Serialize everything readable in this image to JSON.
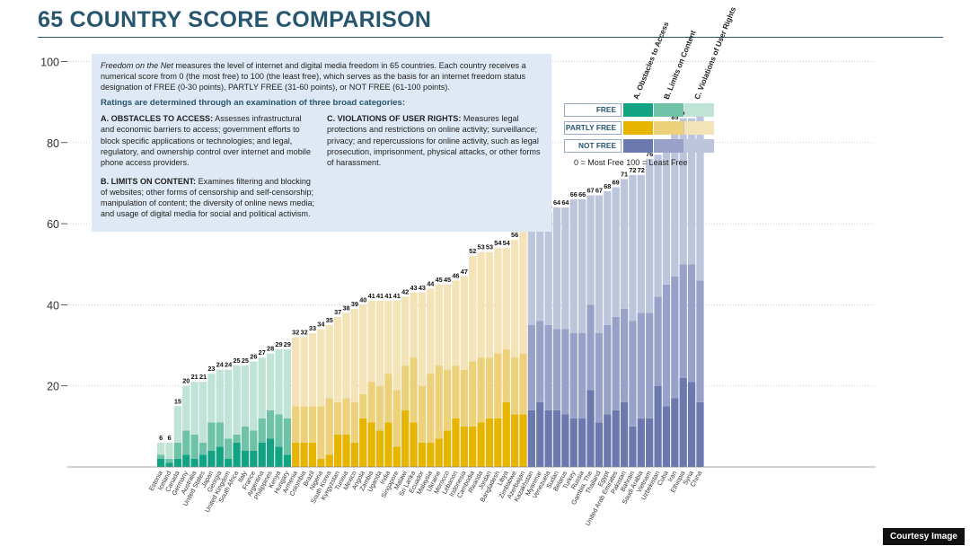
{
  "title": "65 COUNTRY SCORE COMPARISON",
  "info": {
    "intro_lead": "Freedom on the Net",
    "intro_rest": " measures the level of internet and digital media freedom in 65 countries. Each country receives a numerical score from 0 (the most free) to 100 (the least free), which serves as the basis for an internet freedom status designation of FREE (0-30 points), PARTLY FREE (31-60 points), or NOT FREE (61-100 points).",
    "heading": "Ratings are determined through an examination of three broad categories:",
    "a_title": "A. OBSTACLES TO ACCESS:",
    "a_text": " Assesses infrastructural and economic barriers to access; government efforts to block specific applications or technologies; and legal, regulatory, and ownership control over internet and mobile phone access providers.",
    "b_title": "B. LIMITS ON CONTENT:",
    "b_text": " Examines filtering and blocking of websites; other forms of censorship and self-censorship; manipulation of content; the diversity of online news media; and usage of digital media for social and political activism.",
    "c_title": "C. VIOLATIONS OF USER RIGHTS:",
    "c_text": " Measures legal protections and restrictions on online activity; surveillance; privacy; and repercussions for online activity, such as legal prosecution, imprisonment, physical attacks, or other forms of harassment."
  },
  "legend": {
    "headers": [
      "A. Obstacles to Access",
      "B. Limits on Content",
      "C. Violations of User Rights"
    ],
    "rows": [
      {
        "label": "FREE",
        "colors": [
          "#12a383",
          "#6dc2a7",
          "#bfe4d6"
        ]
      },
      {
        "label": "PARTLY FREE",
        "colors": [
          "#e7b500",
          "#ecd17a",
          "#f3e3b6"
        ]
      },
      {
        "label": "NOT FREE",
        "colors": [
          "#6c79ae",
          "#98a2c9",
          "#bcc5dc"
        ]
      }
    ],
    "note": "0 = Most Free   100 = Least Free"
  },
  "credit": "Courtesy Image",
  "chart_data": {
    "type": "bar",
    "stacked": true,
    "ylim": [
      0,
      100
    ],
    "yticks": [
      20,
      40,
      60,
      80,
      100
    ],
    "grid": true,
    "categories": [
      "Estonia",
      "Iceland",
      "Canada",
      "Germany",
      "Australia",
      "United States",
      "Japan",
      "Georgia",
      "United Kingdom",
      "South Africa",
      "Italy",
      "France",
      "Argentina",
      "Philippines",
      "Kenya",
      "Hungary",
      "Armenia",
      "Colombia",
      "Brazil",
      "Nigeria",
      "South Korea",
      "Kyrgyzstan",
      "Tunisia",
      "Mexico",
      "Angola",
      "Zambia",
      "Uganda",
      "India",
      "Singapore",
      "Malawi",
      "Sri Lanka",
      "Ecuador",
      "Malaysia",
      "Ukraine",
      "Morocco",
      "Lebanon",
      "Indonesia",
      "Cambodia",
      "Rwanda",
      "Jordan",
      "Bangladesh",
      "Libya",
      "Zimbabwe",
      "Azerbaijan",
      "Kazakhstan",
      "Myanmar",
      "Venezuela",
      "Sudan",
      "Belarus",
      "Turkey",
      "Russia",
      "Gambia, The",
      "Thailand",
      "Egypt",
      "United Arab Emirates",
      "Pakistan",
      "Bahrain",
      "Saudi Arabia",
      "Vietnam",
      "Uzbekistan",
      "Cuba",
      "Iran",
      "Ethiopia",
      "Syria",
      "China"
    ],
    "totals": [
      6,
      6,
      15,
      20,
      21,
      21,
      23,
      24,
      24,
      25,
      25,
      26,
      27,
      28,
      29,
      29,
      32,
      32,
      33,
      34,
      35,
      37,
      38,
      39,
      40,
      41,
      41,
      41,
      41,
      42,
      43,
      43,
      44,
      45,
      45,
      46,
      47,
      52,
      53,
      53,
      54,
      54,
      56,
      58,
      62,
      63,
      63,
      64,
      64,
      66,
      66,
      67,
      67,
      68,
      69,
      71,
      72,
      72,
      76,
      77,
      79,
      85,
      86,
      86,
      87
    ],
    "status": [
      "FREE",
      "FREE",
      "FREE",
      "FREE",
      "FREE",
      "FREE",
      "FREE",
      "FREE",
      "FREE",
      "FREE",
      "FREE",
      "FREE",
      "FREE",
      "FREE",
      "FREE",
      "FREE",
      "PARTLY FREE",
      "PARTLY FREE",
      "PARTLY FREE",
      "PARTLY FREE",
      "PARTLY FREE",
      "PARTLY FREE",
      "PARTLY FREE",
      "PARTLY FREE",
      "PARTLY FREE",
      "PARTLY FREE",
      "PARTLY FREE",
      "PARTLY FREE",
      "PARTLY FREE",
      "PARTLY FREE",
      "PARTLY FREE",
      "PARTLY FREE",
      "PARTLY FREE",
      "PARTLY FREE",
      "PARTLY FREE",
      "PARTLY FREE",
      "PARTLY FREE",
      "PARTLY FREE",
      "PARTLY FREE",
      "PARTLY FREE",
      "PARTLY FREE",
      "PARTLY FREE",
      "PARTLY FREE",
      "PARTLY FREE",
      "NOT FREE",
      "NOT FREE",
      "NOT FREE",
      "NOT FREE",
      "NOT FREE",
      "NOT FREE",
      "NOT FREE",
      "NOT FREE",
      "NOT FREE",
      "NOT FREE",
      "NOT FREE",
      "NOT FREE",
      "NOT FREE",
      "NOT FREE",
      "NOT FREE",
      "NOT FREE",
      "NOT FREE",
      "NOT FREE",
      "NOT FREE",
      "NOT FREE",
      "NOT FREE"
    ],
    "series": [
      {
        "name": "A. Obstacles to Access",
        "values": [
          2,
          1,
          2,
          3,
          2,
          3,
          4,
          5,
          2,
          6,
          4,
          4,
          6,
          7,
          5,
          3,
          6,
          6,
          6,
          2,
          3,
          8,
          8,
          6,
          12,
          11,
          9,
          11,
          5,
          14,
          11,
          6,
          6,
          7,
          9,
          12,
          10,
          10,
          11,
          12,
          12,
          16,
          13,
          13,
          14,
          16,
          14,
          14,
          13,
          12,
          12,
          19,
          11,
          13,
          14,
          16,
          10,
          12,
          12,
          20,
          15,
          17,
          22,
          21,
          16
        ]
      },
      {
        "name": "B. Limits on Content",
        "values": [
          1,
          1,
          4,
          6,
          6,
          3,
          7,
          6,
          5,
          2,
          6,
          5,
          6,
          7,
          8,
          9,
          9,
          9,
          9,
          13,
          14,
          8,
          9,
          10,
          6,
          10,
          11,
          12,
          14,
          11,
          16,
          14,
          17,
          18,
          15,
          13,
          14,
          16,
          16,
          15,
          16,
          13,
          14,
          15,
          21,
          20,
          21,
          20,
          21,
          21,
          21,
          21,
          22,
          22,
          23,
          23,
          26,
          26,
          26,
          22,
          30,
          30,
          28,
          29,
          30
        ]
      },
      {
        "name": "C. Violations of User Rights",
        "values": [
          3,
          4,
          9,
          11,
          13,
          15,
          12,
          13,
          17,
          17,
          15,
          17,
          15,
          14,
          16,
          17,
          17,
          17,
          18,
          19,
          18,
          21,
          21,
          23,
          22,
          20,
          21,
          18,
          22,
          17,
          16,
          23,
          21,
          20,
          21,
          21,
          23,
          26,
          26,
          26,
          26,
          25,
          29,
          30,
          27,
          27,
          28,
          30,
          30,
          33,
          33,
          27,
          34,
          33,
          32,
          32,
          36,
          34,
          38,
          35,
          34,
          38,
          36,
          36,
          41
        ]
      }
    ],
    "colors": {
      "FREE": [
        "#12a383",
        "#6dc2a7",
        "#bfe4d6"
      ],
      "PARTLY FREE": [
        "#e7b500",
        "#ecd17a",
        "#f3e3b6"
      ],
      "NOT FREE": [
        "#6c79ae",
        "#98a2c9",
        "#bcc5dc"
      ]
    }
  }
}
